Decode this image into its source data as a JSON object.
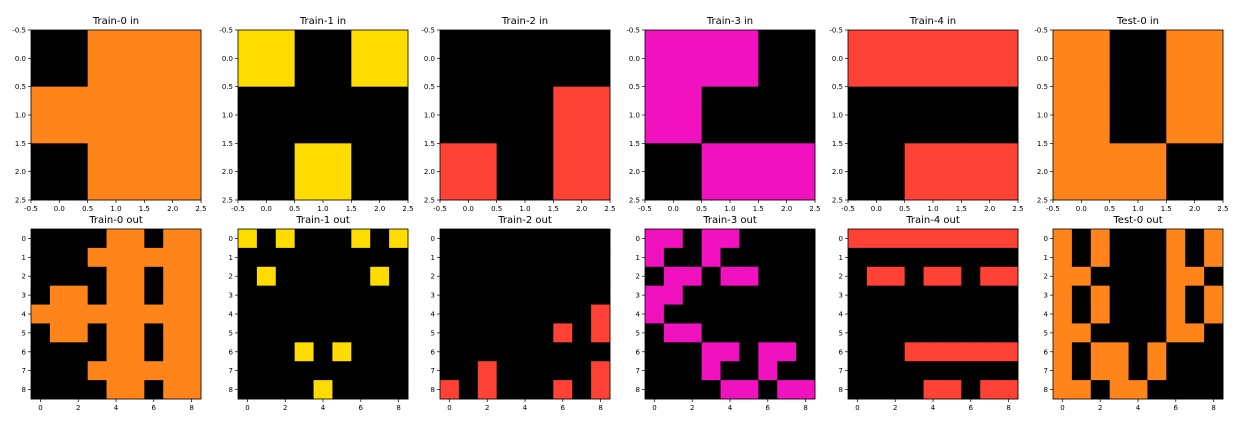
{
  "colors": {
    "0": "#000000",
    "2": "#FF4136",
    "4": "#FFDC00",
    "6": "#F012BE",
    "7": "#FF851B",
    "frame": "#000000",
    "background": "#FFFFFF"
  },
  "panels_in": [
    {
      "title": "Train-0 in",
      "grid": [
        [
          0,
          7,
          7
        ],
        [
          7,
          7,
          7
        ],
        [
          0,
          7,
          7
        ]
      ],
      "xticks": [
        "-0.5",
        "0.0",
        "0.5",
        "1.0",
        "1.5",
        "2.0",
        "2.5"
      ],
      "yticks": [
        "-0.5",
        "0.0",
        "0.5",
        "1.0",
        "1.5",
        "2.0",
        "2.5"
      ]
    },
    {
      "title": "Train-1 in",
      "grid": [
        [
          4,
          0,
          4
        ],
        [
          0,
          0,
          0
        ],
        [
          0,
          4,
          0
        ]
      ],
      "xticks": [
        "-0.5",
        "0.0",
        "0.5",
        "1.0",
        "1.5",
        "2.0",
        "2.5"
      ],
      "yticks": [
        "-0.5",
        "0.0",
        "0.5",
        "1.0",
        "1.5",
        "2.0",
        "2.5"
      ]
    },
    {
      "title": "Train-2 in",
      "grid": [
        [
          0,
          0,
          0
        ],
        [
          0,
          0,
          2
        ],
        [
          2,
          0,
          2
        ]
      ],
      "xticks": [
        "-0.5",
        "0.0",
        "0.5",
        "1.0",
        "1.5",
        "2.0",
        "2.5"
      ],
      "yticks": [
        "-0.5",
        "0.0",
        "0.5",
        "1.0",
        "1.5",
        "2.0",
        "2.5"
      ]
    },
    {
      "title": "Train-3 in",
      "grid": [
        [
          6,
          6,
          0
        ],
        [
          6,
          0,
          0
        ],
        [
          0,
          6,
          6
        ]
      ],
      "xticks": [
        "-0.5",
        "0.0",
        "0.5",
        "1.0",
        "1.5",
        "2.0",
        "2.5"
      ],
      "yticks": [
        "-0.5",
        "0.0",
        "0.5",
        "1.0",
        "1.5",
        "2.0",
        "2.5"
      ]
    },
    {
      "title": "Train-4 in",
      "grid": [
        [
          2,
          2,
          2
        ],
        [
          0,
          0,
          0
        ],
        [
          0,
          2,
          2
        ]
      ],
      "xticks": [
        "-0.5",
        "0.0",
        "0.5",
        "1.0",
        "1.5",
        "2.0",
        "2.5"
      ],
      "yticks": [
        "-0.5",
        "0.0",
        "0.5",
        "1.0",
        "1.5",
        "2.0",
        "2.5"
      ]
    },
    {
      "title": "Test-0 in",
      "grid": [
        [
          7,
          0,
          7
        ],
        [
          7,
          0,
          7
        ],
        [
          7,
          7,
          0
        ]
      ],
      "xticks": [
        "-0.5",
        "0.0",
        "0.5",
        "1.0",
        "1.5",
        "2.0",
        "2.5"
      ],
      "yticks": [
        "-0.5",
        "0.0",
        "0.5",
        "1.0",
        "1.5",
        "2.0",
        "2.5"
      ]
    }
  ],
  "panels_out": [
    {
      "title": "Train-0 out",
      "grid": [
        [
          0,
          0,
          0,
          0,
          7,
          7,
          0,
          7,
          7
        ],
        [
          0,
          0,
          0,
          7,
          7,
          7,
          7,
          7,
          7
        ],
        [
          0,
          0,
          0,
          0,
          7,
          7,
          0,
          7,
          7
        ],
        [
          0,
          7,
          7,
          0,
          7,
          7,
          0,
          7,
          7
        ],
        [
          7,
          7,
          7,
          7,
          7,
          7,
          7,
          7,
          7
        ],
        [
          0,
          7,
          7,
          0,
          7,
          7,
          0,
          7,
          7
        ],
        [
          0,
          0,
          0,
          0,
          7,
          7,
          0,
          7,
          7
        ],
        [
          0,
          0,
          0,
          7,
          7,
          7,
          7,
          7,
          7
        ],
        [
          0,
          0,
          0,
          0,
          7,
          7,
          0,
          7,
          7
        ]
      ],
      "xticks": [
        "0",
        "2",
        "4",
        "6",
        "8"
      ],
      "yticks": [
        "0",
        "1",
        "2",
        "3",
        "4",
        "5",
        "6",
        "7",
        "8"
      ]
    },
    {
      "title": "Train-1 out",
      "grid": [
        [
          4,
          0,
          4,
          0,
          0,
          0,
          4,
          0,
          4
        ],
        [
          0,
          0,
          0,
          0,
          0,
          0,
          0,
          0,
          0
        ],
        [
          0,
          4,
          0,
          0,
          0,
          0,
          0,
          4,
          0
        ],
        [
          0,
          0,
          0,
          0,
          0,
          0,
          0,
          0,
          0
        ],
        [
          0,
          0,
          0,
          0,
          0,
          0,
          0,
          0,
          0
        ],
        [
          0,
          0,
          0,
          0,
          0,
          0,
          0,
          0,
          0
        ],
        [
          0,
          0,
          0,
          4,
          0,
          4,
          0,
          0,
          0
        ],
        [
          0,
          0,
          0,
          0,
          0,
          0,
          0,
          0,
          0
        ],
        [
          0,
          0,
          0,
          0,
          4,
          0,
          0,
          0,
          0
        ]
      ],
      "xticks": [
        "0",
        "2",
        "4",
        "6",
        "8"
      ],
      "yticks": [
        "0",
        "1",
        "2",
        "3",
        "4",
        "5",
        "6",
        "7",
        "8"
      ]
    },
    {
      "title": "Train-2 out",
      "grid": [
        [
          0,
          0,
          0,
          0,
          0,
          0,
          0,
          0,
          0
        ],
        [
          0,
          0,
          0,
          0,
          0,
          0,
          0,
          0,
          0
        ],
        [
          0,
          0,
          0,
          0,
          0,
          0,
          0,
          0,
          0
        ],
        [
          0,
          0,
          0,
          0,
          0,
          0,
          0,
          0,
          0
        ],
        [
          0,
          0,
          0,
          0,
          0,
          0,
          0,
          0,
          2
        ],
        [
          0,
          0,
          0,
          0,
          0,
          0,
          2,
          0,
          2
        ],
        [
          0,
          0,
          0,
          0,
          0,
          0,
          0,
          0,
          0
        ],
        [
          0,
          0,
          2,
          0,
          0,
          0,
          0,
          0,
          2
        ],
        [
          2,
          0,
          2,
          0,
          0,
          0,
          2,
          0,
          2
        ]
      ],
      "xticks": [
        "0",
        "2",
        "4",
        "6",
        "8"
      ],
      "yticks": [
        "0",
        "1",
        "2",
        "3",
        "4",
        "5",
        "6",
        "7",
        "8"
      ]
    },
    {
      "title": "Train-3 out",
      "grid": [
        [
          6,
          6,
          0,
          6,
          6,
          0,
          0,
          0,
          0
        ],
        [
          6,
          0,
          0,
          6,
          0,
          0,
          0,
          0,
          0
        ],
        [
          0,
          6,
          6,
          0,
          6,
          6,
          0,
          0,
          0
        ],
        [
          6,
          6,
          0,
          0,
          0,
          0,
          0,
          0,
          0
        ],
        [
          6,
          0,
          0,
          0,
          0,
          0,
          0,
          0,
          0
        ],
        [
          0,
          6,
          6,
          0,
          0,
          0,
          0,
          0,
          0
        ],
        [
          0,
          0,
          0,
          6,
          6,
          0,
          6,
          6,
          0
        ],
        [
          0,
          0,
          0,
          6,
          0,
          0,
          6,
          0,
          0
        ],
        [
          0,
          0,
          0,
          0,
          6,
          6,
          0,
          6,
          6
        ]
      ],
      "xticks": [
        "0",
        "2",
        "4",
        "6",
        "8"
      ],
      "yticks": [
        "0",
        "1",
        "2",
        "3",
        "4",
        "5",
        "6",
        "7",
        "8"
      ]
    },
    {
      "title": "Train-4 out",
      "grid": [
        [
          2,
          2,
          2,
          2,
          2,
          2,
          2,
          2,
          2
        ],
        [
          0,
          0,
          0,
          0,
          0,
          0,
          0,
          0,
          0
        ],
        [
          0,
          2,
          2,
          0,
          2,
          2,
          0,
          2,
          2
        ],
        [
          0,
          0,
          0,
          0,
          0,
          0,
          0,
          0,
          0
        ],
        [
          0,
          0,
          0,
          0,
          0,
          0,
          0,
          0,
          0
        ],
        [
          0,
          0,
          0,
          0,
          0,
          0,
          0,
          0,
          0
        ],
        [
          0,
          0,
          0,
          2,
          2,
          2,
          2,
          2,
          2
        ],
        [
          0,
          0,
          0,
          0,
          0,
          0,
          0,
          0,
          0
        ],
        [
          0,
          0,
          0,
          0,
          2,
          2,
          0,
          2,
          2
        ]
      ],
      "xticks": [
        "0",
        "2",
        "4",
        "6",
        "8"
      ],
      "yticks": [
        "0",
        "1",
        "2",
        "3",
        "4",
        "5",
        "6",
        "7",
        "8"
      ]
    },
    {
      "title": "Test-0 out",
      "grid": [
        [
          7,
          0,
          7,
          0,
          0,
          0,
          7,
          0,
          7
        ],
        [
          7,
          0,
          7,
          0,
          0,
          0,
          7,
          0,
          7
        ],
        [
          7,
          7,
          0,
          0,
          0,
          0,
          7,
          7,
          0
        ],
        [
          7,
          0,
          7,
          0,
          0,
          0,
          7,
          0,
          7
        ],
        [
          7,
          0,
          7,
          0,
          0,
          0,
          7,
          0,
          7
        ],
        [
          7,
          7,
          0,
          0,
          0,
          0,
          7,
          7,
          0
        ],
        [
          7,
          0,
          7,
          7,
          0,
          7,
          0,
          0,
          0
        ],
        [
          7,
          0,
          7,
          7,
          0,
          7,
          0,
          0,
          0
        ],
        [
          7,
          7,
          0,
          7,
          7,
          0,
          0,
          0,
          0
        ]
      ],
      "xticks": [
        "0",
        "2",
        "4",
        "6",
        "8"
      ],
      "yticks": [
        "0",
        "1",
        "2",
        "3",
        "4",
        "5",
        "6",
        "7",
        "8"
      ]
    }
  ]
}
